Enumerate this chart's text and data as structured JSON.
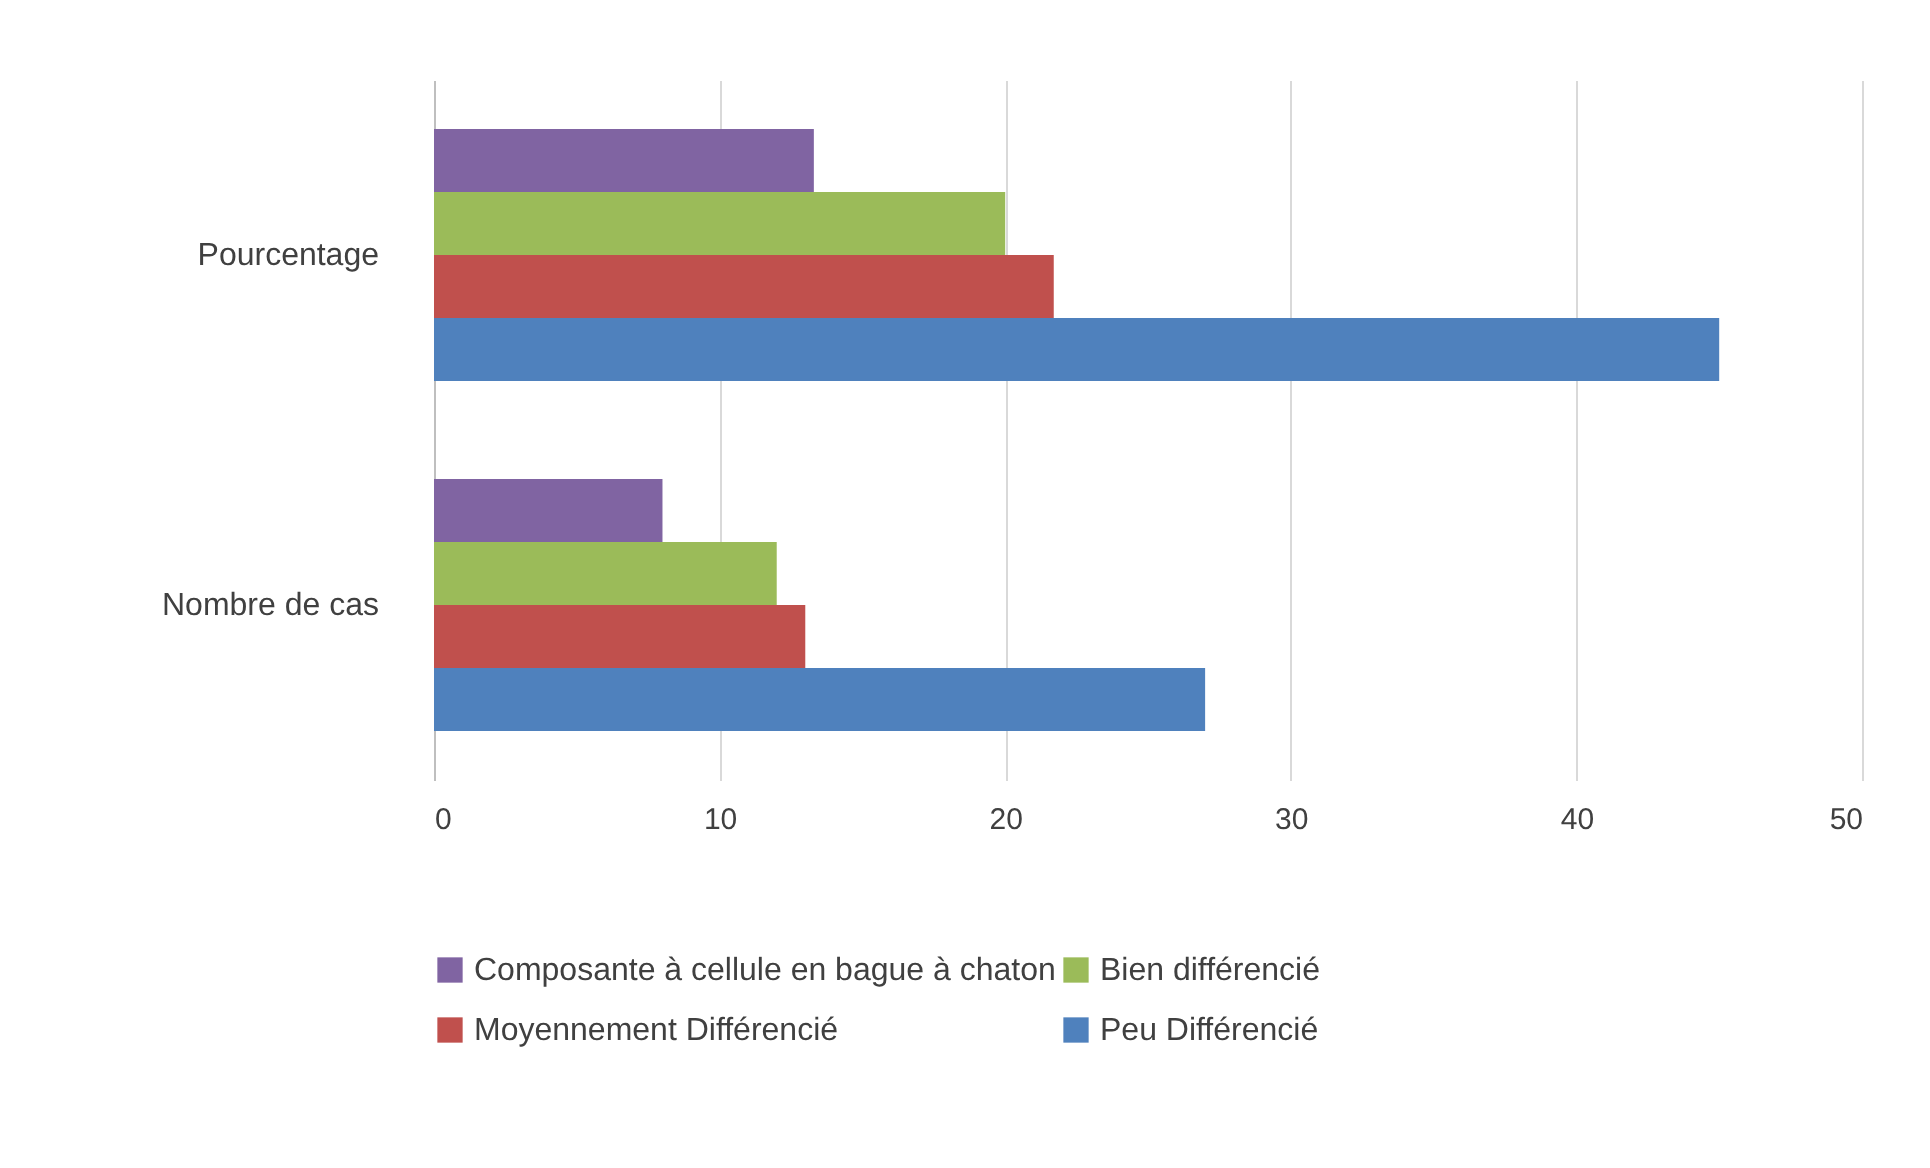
{
  "chart_data": {
    "type": "bar",
    "orientation": "horizontal",
    "categories": [
      "Pourcentage",
      "Nombre de cas"
    ],
    "series": [
      {
        "name": "Composante à cellule en bague à chaton",
        "color": "#8064a2",
        "values": [
          13.3,
          8
        ]
      },
      {
        "name": "Bien différencié",
        "color": "#9bbb59",
        "values": [
          20,
          12
        ]
      },
      {
        "name": "Moyennement Différencié",
        "color": "#c0504d",
        "values": [
          21.7,
          13
        ]
      },
      {
        "name": "Peu Différencié",
        "color": "#4f81bd",
        "values": [
          45,
          27
        ]
      }
    ],
    "xlim": [
      0,
      50
    ],
    "xticks": [
      0,
      10,
      20,
      30,
      40,
      50
    ],
    "grid": "x",
    "legend": "bottom"
  }
}
